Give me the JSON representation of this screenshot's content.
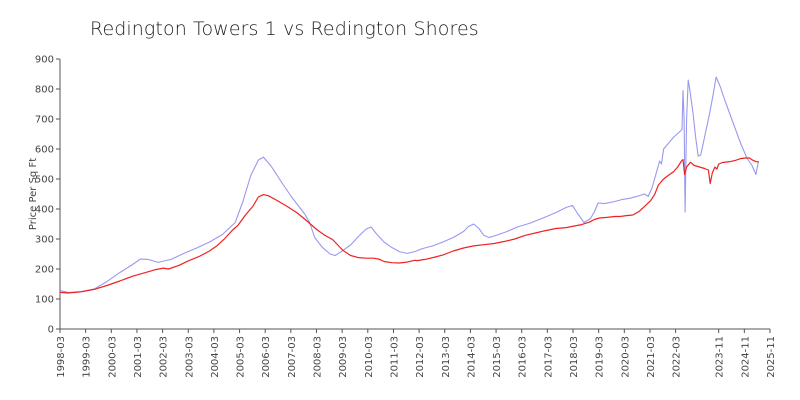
{
  "chart_data": {
    "type": "line",
    "title": "Redington Towers 1 vs Redington Shores",
    "xlabel": "",
    "ylabel": "Price Per Sq Ft",
    "ylim": [
      0,
      900
    ],
    "yticks": [
      0,
      100,
      200,
      300,
      400,
      500,
      600,
      700,
      800,
      900
    ],
    "xlim": [
      1998.17,
      2025.85
    ],
    "xticks": [
      {
        "label": "1998-03",
        "t": 1998.17
      },
      {
        "label": "1999-03",
        "t": 1999.17
      },
      {
        "label": "2000-03",
        "t": 2000.17
      },
      {
        "label": "2001-03",
        "t": 2001.17
      },
      {
        "label": "2002-03",
        "t": 2002.17
      },
      {
        "label": "2003-03",
        "t": 2003.17
      },
      {
        "label": "2004-03",
        "t": 2004.17
      },
      {
        "label": "2005-03",
        "t": 2005.17
      },
      {
        "label": "2006-03",
        "t": 2006.17
      },
      {
        "label": "2007-03",
        "t": 2007.17
      },
      {
        "label": "2008-03",
        "t": 2008.17
      },
      {
        "label": "2009-03",
        "t": 2009.17
      },
      {
        "label": "2010-03",
        "t": 2010.17
      },
      {
        "label": "2011-03",
        "t": 2011.17
      },
      {
        "label": "2012-03",
        "t": 2012.17
      },
      {
        "label": "2013-03",
        "t": 2013.17
      },
      {
        "label": "2014-03",
        "t": 2014.17
      },
      {
        "label": "2015-03",
        "t": 2015.17
      },
      {
        "label": "2016-03",
        "t": 2016.17
      },
      {
        "label": "2017-03",
        "t": 2017.17
      },
      {
        "label": "2018-03",
        "t": 2018.17
      },
      {
        "label": "2019-03",
        "t": 2019.17
      },
      {
        "label": "2020-03",
        "t": 2020.17
      },
      {
        "label": "2021-03",
        "t": 2021.17
      },
      {
        "label": "2022-03",
        "t": 2022.17
      },
      {
        "label": "2023-11",
        "t": 2023.85
      },
      {
        "label": "2024-11",
        "t": 2024.85
      },
      {
        "label": "2025-11",
        "t": 2025.85
      }
    ],
    "series": [
      {
        "name": "Redington Towers 1",
        "color": "#9999ee",
        "points": [
          [
            1998.17,
            128
          ],
          [
            1998.5,
            122
          ],
          [
            1999.0,
            125
          ],
          [
            1999.5,
            133
          ],
          [
            2000.0,
            158
          ],
          [
            2000.5,
            188
          ],
          [
            2001.0,
            215
          ],
          [
            2001.3,
            233
          ],
          [
            2001.6,
            232
          ],
          [
            2002.0,
            222
          ],
          [
            2002.5,
            232
          ],
          [
            2003.0,
            252
          ],
          [
            2003.5,
            270
          ],
          [
            2004.0,
            290
          ],
          [
            2004.5,
            315
          ],
          [
            2005.0,
            355
          ],
          [
            2005.3,
            425
          ],
          [
            2005.6,
            510
          ],
          [
            2005.9,
            563
          ],
          [
            2006.1,
            573
          ],
          [
            2006.4,
            543
          ],
          [
            2006.8,
            490
          ],
          [
            2007.2,
            440
          ],
          [
            2007.7,
            385
          ],
          [
            2007.9,
            355
          ],
          [
            2008.1,
            305
          ],
          [
            2008.4,
            272
          ],
          [
            2008.7,
            250
          ],
          [
            2008.9,
            245
          ],
          [
            2009.2,
            262
          ],
          [
            2009.5,
            280
          ],
          [
            2009.8,
            308
          ],
          [
            2010.1,
            333
          ],
          [
            2010.3,
            340
          ],
          [
            2010.5,
            318
          ],
          [
            2010.8,
            290
          ],
          [
            2011.1,
            272
          ],
          [
            2011.4,
            258
          ],
          [
            2011.7,
            252
          ],
          [
            2012.0,
            258
          ],
          [
            2012.3,
            268
          ],
          [
            2012.7,
            277
          ],
          [
            2013.1,
            290
          ],
          [
            2013.5,
            305
          ],
          [
            2013.9,
            325
          ],
          [
            2014.1,
            342
          ],
          [
            2014.3,
            350
          ],
          [
            2014.5,
            335
          ],
          [
            2014.7,
            312
          ],
          [
            2014.9,
            305
          ],
          [
            2015.2,
            313
          ],
          [
            2015.6,
            325
          ],
          [
            2016.0,
            340
          ],
          [
            2016.5,
            353
          ],
          [
            2017.0,
            370
          ],
          [
            2017.5,
            388
          ],
          [
            2017.9,
            405
          ],
          [
            2018.15,
            412
          ],
          [
            2018.35,
            385
          ],
          [
            2018.6,
            355
          ],
          [
            2018.85,
            368
          ],
          [
            2019.0,
            390
          ],
          [
            2019.15,
            420
          ],
          [
            2019.4,
            418
          ],
          [
            2019.8,
            425
          ],
          [
            2020.1,
            432
          ],
          [
            2020.4,
            436
          ],
          [
            2020.7,
            443
          ],
          [
            2020.95,
            450
          ],
          [
            2021.1,
            442
          ],
          [
            2021.25,
            470
          ],
          [
            2021.45,
            530
          ],
          [
            2021.55,
            560
          ],
          [
            2021.62,
            550
          ],
          [
            2021.7,
            600
          ],
          [
            2021.9,
            620
          ],
          [
            2022.1,
            640
          ],
          [
            2022.3,
            655
          ],
          [
            2022.42,
            665
          ],
          [
            2022.46,
            795
          ],
          [
            2022.5,
            700
          ],
          [
            2022.54,
            390
          ],
          [
            2022.6,
            700
          ],
          [
            2022.66,
            830
          ],
          [
            2022.72,
            800
          ],
          [
            2022.85,
            720
          ],
          [
            2022.95,
            640
          ],
          [
            2023.05,
            576
          ],
          [
            2023.15,
            580
          ],
          [
            2023.3,
            640
          ],
          [
            2023.5,
            720
          ],
          [
            2023.65,
            790
          ],
          [
            2023.75,
            840
          ],
          [
            2023.9,
            810
          ],
          [
            2024.1,
            760
          ],
          [
            2024.4,
            690
          ],
          [
            2024.7,
            620
          ],
          [
            2024.95,
            570
          ],
          [
            2025.15,
            545
          ],
          [
            2025.3,
            515
          ],
          [
            2025.4,
            560
          ]
        ]
      },
      {
        "name": "Redington Shores",
        "color": "#ee2222",
        "points": [
          [
            1998.17,
            122
          ],
          [
            1998.5,
            120
          ],
          [
            1999.0,
            124
          ],
          [
            1999.5,
            132
          ],
          [
            2000.0,
            145
          ],
          [
            2000.5,
            160
          ],
          [
            2001.0,
            176
          ],
          [
            2001.5,
            188
          ],
          [
            2001.9,
            198
          ],
          [
            2002.2,
            203
          ],
          [
            2002.4,
            200
          ],
          [
            2002.8,
            212
          ],
          [
            2003.2,
            228
          ],
          [
            2003.6,
            242
          ],
          [
            2004.0,
            260
          ],
          [
            2004.3,
            278
          ],
          [
            2004.6,
            302
          ],
          [
            2004.9,
            330
          ],
          [
            2005.1,
            345
          ],
          [
            2005.4,
            380
          ],
          [
            2005.7,
            410
          ],
          [
            2005.9,
            440
          ],
          [
            2006.1,
            448
          ],
          [
            2006.3,
            444
          ],
          [
            2006.6,
            430
          ],
          [
            2007.0,
            410
          ],
          [
            2007.4,
            388
          ],
          [
            2007.8,
            360
          ],
          [
            2008.0,
            345
          ],
          [
            2008.2,
            330
          ],
          [
            2008.5,
            312
          ],
          [
            2008.8,
            298
          ],
          [
            2009.0,
            280
          ],
          [
            2009.2,
            262
          ],
          [
            2009.5,
            245
          ],
          [
            2009.8,
            238
          ],
          [
            2010.1,
            236
          ],
          [
            2010.4,
            236
          ],
          [
            2010.6,
            233
          ],
          [
            2010.8,
            225
          ],
          [
            2011.1,
            221
          ],
          [
            2011.4,
            220
          ],
          [
            2011.7,
            223
          ],
          [
            2012.0,
            229
          ],
          [
            2012.1,
            228
          ],
          [
            2012.4,
            232
          ],
          [
            2012.8,
            240
          ],
          [
            2013.1,
            247
          ],
          [
            2013.5,
            260
          ],
          [
            2013.9,
            270
          ],
          [
            2014.3,
            277
          ],
          [
            2014.7,
            281
          ],
          [
            2015.1,
            285
          ],
          [
            2015.5,
            292
          ],
          [
            2015.9,
            300
          ],
          [
            2016.3,
            312
          ],
          [
            2016.7,
            320
          ],
          [
            2017.1,
            328
          ],
          [
            2017.5,
            335
          ],
          [
            2017.9,
            338
          ],
          [
            2018.2,
            343
          ],
          [
            2018.5,
            348
          ],
          [
            2018.8,
            356
          ],
          [
            2019.0,
            365
          ],
          [
            2019.2,
            370
          ],
          [
            2019.5,
            372
          ],
          [
            2019.8,
            375
          ],
          [
            2020.0,
            375
          ],
          [
            2020.25,
            378
          ],
          [
            2020.5,
            380
          ],
          [
            2020.75,
            392
          ],
          [
            2021.0,
            412
          ],
          [
            2021.2,
            428
          ],
          [
            2021.35,
            448
          ],
          [
            2021.5,
            480
          ],
          [
            2021.7,
            500
          ],
          [
            2021.9,
            513
          ],
          [
            2022.1,
            525
          ],
          [
            2022.25,
            540
          ],
          [
            2022.4,
            560
          ],
          [
            2022.46,
            565
          ],
          [
            2022.52,
            515
          ],
          [
            2022.6,
            540
          ],
          [
            2022.75,
            556
          ],
          [
            2022.9,
            545
          ],
          [
            2023.1,
            540
          ],
          [
            2023.3,
            535
          ],
          [
            2023.45,
            530
          ],
          [
            2023.52,
            485
          ],
          [
            2023.6,
            520
          ],
          [
            2023.7,
            540
          ],
          [
            2023.78,
            533
          ],
          [
            2023.85,
            550
          ],
          [
            2024.0,
            555
          ],
          [
            2024.3,
            558
          ],
          [
            2024.5,
            562
          ],
          [
            2024.7,
            568
          ],
          [
            2024.9,
            570
          ],
          [
            2025.05,
            570
          ],
          [
            2025.15,
            564
          ],
          [
            2025.3,
            558
          ],
          [
            2025.4,
            556
          ]
        ]
      }
    ]
  }
}
